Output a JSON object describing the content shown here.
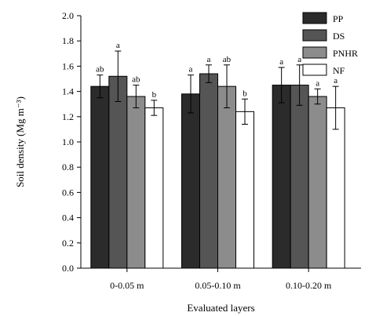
{
  "chart_data": {
    "type": "bar",
    "title": "",
    "xlabel": "Evaluated layers",
    "ylabel": "Soil density (Mg m⁻³)",
    "ylim": [
      0,
      2.0
    ],
    "yticks": [
      "0.0",
      "0.2",
      "0.4",
      "0.6",
      "0.8",
      "1.0",
      "1.2",
      "1.4",
      "1.6",
      "1.8",
      "2.0"
    ],
    "categories": [
      "0-0.05 m",
      "0.05-0.10 m",
      "0.10-0.20 m"
    ],
    "legend_position": "top-right",
    "series": [
      {
        "name": "PP",
        "color": "#2b2b2b",
        "values": [
          1.44,
          1.38,
          1.45
        ],
        "errors": [
          0.09,
          0.15,
          0.14
        ],
        "labels": [
          "ab",
          "a",
          "a"
        ]
      },
      {
        "name": "DS",
        "color": "#555555",
        "values": [
          1.52,
          1.54,
          1.45
        ],
        "errors": [
          0.2,
          0.07,
          0.16
        ],
        "labels": [
          "a",
          "a",
          "a"
        ]
      },
      {
        "name": "PNHR",
        "color": "#8c8c8c",
        "values": [
          1.36,
          1.44,
          1.36
        ],
        "errors": [
          0.09,
          0.17,
          0.06
        ],
        "labels": [
          "ab",
          "ab",
          "a"
        ]
      },
      {
        "name": "NF",
        "color": "#ffffff",
        "values": [
          1.27,
          1.24,
          1.27
        ],
        "errors": [
          0.06,
          0.1,
          0.17
        ],
        "labels": [
          "b",
          "b",
          "a"
        ]
      }
    ]
  }
}
